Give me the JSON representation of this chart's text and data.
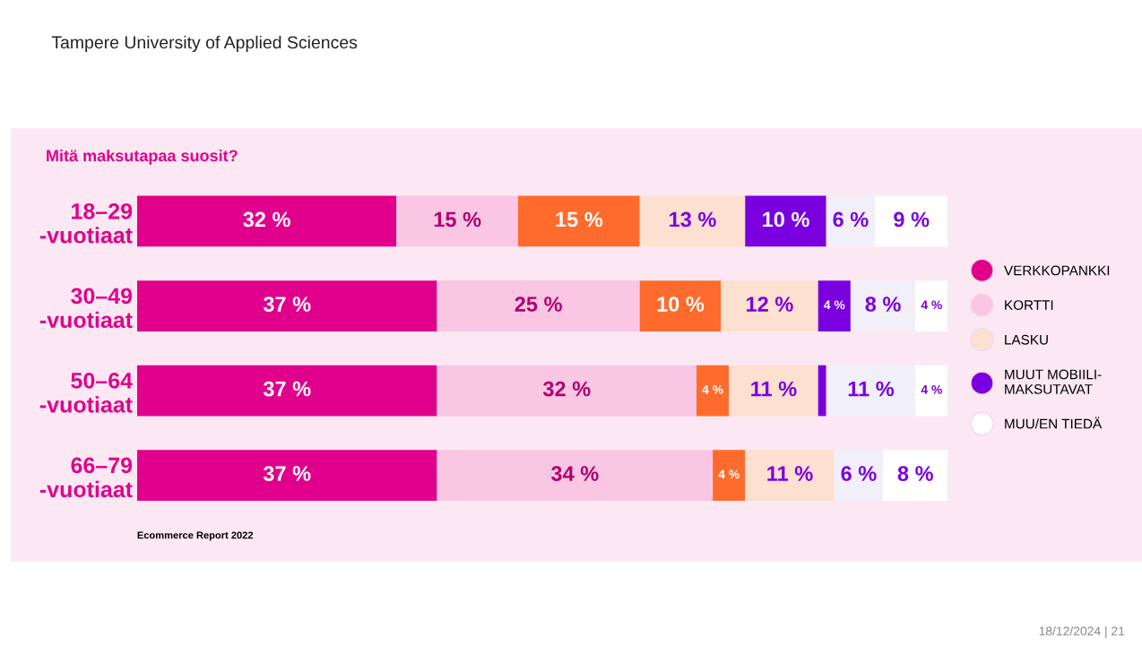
{
  "chart_data": {
    "type": "bar",
    "orientation": "horizontal",
    "stacked": true,
    "title": "Mitä maksutapaa suosit?",
    "categories": [
      "18–29\n-vuotiaat",
      "30–49\n-vuotiaat",
      "50–64\n-vuotiaat",
      "66–79\n-vuotiaat"
    ],
    "series": [
      {
        "name": "VERKKOPANKKI",
        "color": "#e0008c",
        "values": [
          32,
          37,
          37,
          37
        ],
        "value_labels": [
          "32 %",
          "37 %",
          "37 %",
          "37 %"
        ]
      },
      {
        "name": "KORTTI",
        "color": "#f9c6e4",
        "values": [
          15,
          25,
          32,
          34
        ],
        "value_labels": [
          "15 %",
          "25 %",
          "32 %",
          "34 %"
        ]
      },
      {
        "color": "#ff6b2c",
        "values": [
          15,
          10,
          4,
          4
        ],
        "value_labels": [
          "15 %",
          "10 %",
          "4 %",
          "4 %"
        ]
      },
      {
        "name": "LASKU",
        "color": "#fde0d0",
        "values": [
          13,
          12,
          11,
          11
        ],
        "value_labels": [
          "13 %",
          "12 %",
          "11 %",
          "11 %"
        ]
      },
      {
        "name": "MUUT MOBIILI-\nMAKSUTAVAT",
        "color": "#7a00e0",
        "values": [
          10,
          4,
          1,
          null
        ],
        "value_labels": [
          "10 %",
          "4 %",
          null,
          null
        ]
      },
      {
        "color": "#f1effa",
        "values": [
          6,
          8,
          11,
          6
        ],
        "value_labels": [
          "6 %",
          "8 %",
          "11 %",
          "6 %"
        ]
      },
      {
        "name": "MUU/EN TIEDÄ",
        "color": "#ffffff",
        "values": [
          9,
          4,
          4,
          8
        ],
        "value_labels": [
          "9 %",
          "4 %",
          "4 %",
          "8 %"
        ]
      }
    ],
    "legend": "right",
    "grid": false,
    "tick_labels": "y",
    "annotations": [
      "Tampere University of Applied Sciences",
      "Ecommerce Report 2022",
      "18/12/2024 | 21"
    ]
  }
}
